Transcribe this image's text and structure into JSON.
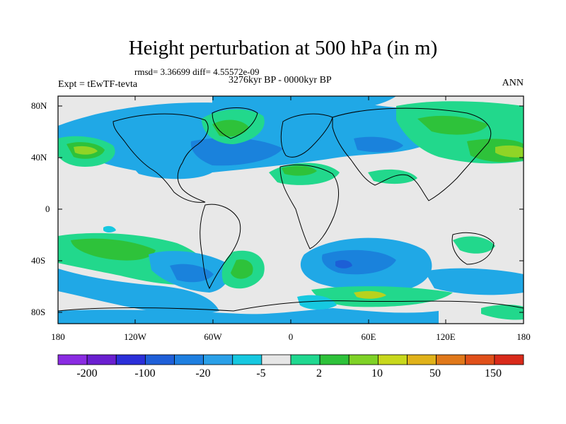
{
  "title": "Height perturbation at 500 hPa (in m)",
  "stats": "rmsd= 3.36699 diff= 4.55572e-09",
  "period": "3276kyr BP - 0000kyr BP",
  "experiment": "Expt = tEwTF-tevta",
  "season": "ANN",
  "lat_labels": [
    "80N",
    "40N",
    "0",
    "40S",
    "80S"
  ],
  "lon_labels": [
    "180",
    "120W",
    "60W",
    "0",
    "60E",
    "120E",
    "180"
  ],
  "colorbar": {
    "colors": [
      "#8a2be2",
      "#6a1fd0",
      "#2b2fd9",
      "#1f5fd8",
      "#1e7fe0",
      "#2aa0e8",
      "#16c8e0",
      "#e6e6e6",
      "#20d890",
      "#2ec23a",
      "#7fd226",
      "#c8d81c",
      "#e0b21a",
      "#e0781a",
      "#e0501a",
      "#d92a1a"
    ],
    "labels": [
      "-200",
      "-100",
      "-20",
      "-5",
      "2",
      "10",
      "50",
      "150"
    ]
  }
}
